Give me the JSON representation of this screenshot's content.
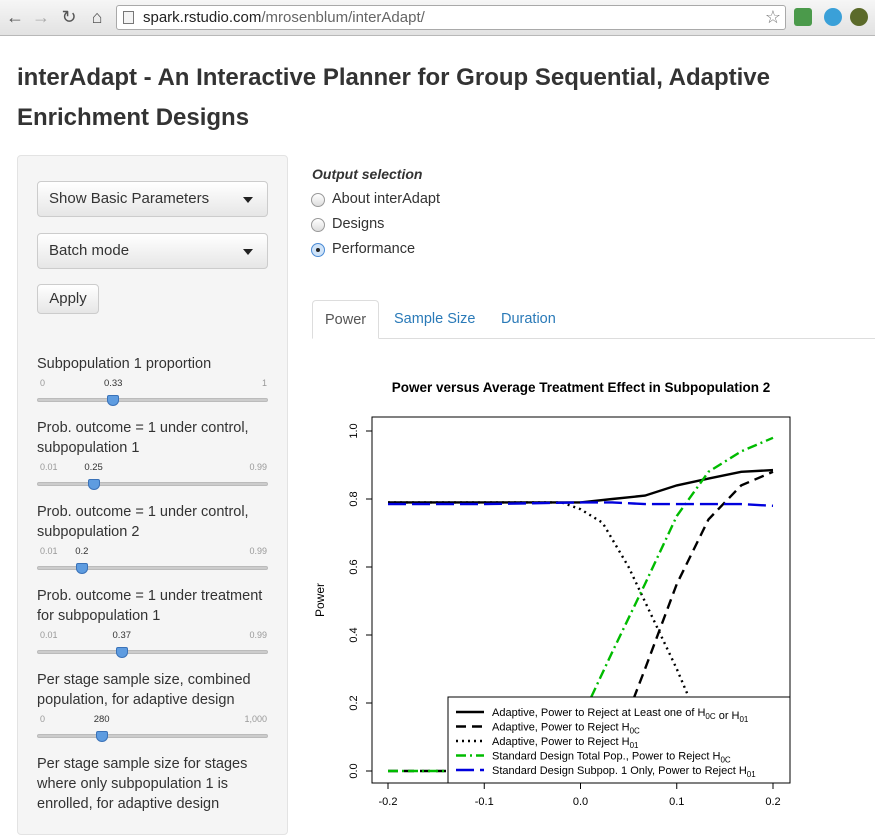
{
  "browser": {
    "url_host": "spark.rstudio.com",
    "url_path": "/mrosenblum/interAdapt/"
  },
  "page": {
    "title": "interAdapt - An Interactive Planner for Group Sequential, Adaptive Enrichment Designs"
  },
  "sidebar": {
    "param_dropdown": "Show Basic Parameters",
    "mode_dropdown": "Batch mode",
    "apply_label": "Apply",
    "sliders": [
      {
        "label": "Subpopulation 1 proportion",
        "min": "0",
        "max": "1",
        "value": "0.33",
        "fraction": 0.33
      },
      {
        "label": "Prob. outcome = 1 under control, subpopulation 1",
        "min": "0.01",
        "max": "0.99",
        "value": "0.25",
        "fraction": 0.245
      },
      {
        "label": "Prob. outcome = 1 under control, subpopulation 2",
        "min": "0.01",
        "max": "0.99",
        "value": "0.2",
        "fraction": 0.194
      },
      {
        "label": "Prob. outcome = 1 under treatment for subpopulation 1",
        "min": "0.01",
        "max": "0.99",
        "value": "0.37",
        "fraction": 0.367
      },
      {
        "label": "Per stage sample size, combined population, for adaptive design",
        "min": "0",
        "max": "1,000",
        "value": "280",
        "fraction": 0.28
      },
      {
        "label": "Per stage sample size for stages where only subpopulation 1 is enrolled, for adaptive design",
        "min": "",
        "max": "",
        "value": "",
        "fraction": null
      }
    ]
  },
  "output": {
    "heading": "Output selection",
    "options": [
      {
        "label": "About interAdapt",
        "selected": false
      },
      {
        "label": "Designs",
        "selected": false
      },
      {
        "label": "Performance",
        "selected": true
      }
    ],
    "tabs": [
      {
        "label": "Power",
        "active": true
      },
      {
        "label": "Sample Size",
        "active": false
      },
      {
        "label": "Duration",
        "active": false
      }
    ]
  },
  "chart_data": {
    "type": "line",
    "title": "Power versus Average Treatment Effect in Subpopulation 2",
    "ylabel": "Power",
    "xlabel": "",
    "xlim": [
      -0.2,
      0.2
    ],
    "ylim": [
      0.0,
      1.0
    ],
    "x_ticks": [
      "-0.2",
      "-0.1",
      "0.0",
      "0.1",
      "0.2"
    ],
    "y_ticks": [
      "0.0",
      "0.2",
      "0.4",
      "0.6",
      "0.8",
      "1.0"
    ],
    "legend_position": "bottom-right",
    "series": [
      {
        "name": "Adaptive, Power to Reject at Least one of H0C or H01",
        "color": "#000000",
        "dash": "solid",
        "x": [
          -0.2,
          -0.15,
          -0.1,
          -0.05,
          0.0,
          0.033,
          0.067,
          0.1,
          0.133,
          0.167,
          0.2
        ],
        "y": [
          0.79,
          0.79,
          0.79,
          0.79,
          0.79,
          0.8,
          0.81,
          0.84,
          0.86,
          0.88,
          0.885
        ]
      },
      {
        "name": "Adaptive, Power to Reject H0C",
        "color": "#000000",
        "dash": "dashed",
        "x": [
          -0.2,
          -0.1,
          0.0,
          0.033,
          0.067,
          0.1,
          0.133,
          0.167,
          0.2
        ],
        "y": [
          0.0,
          0.0,
          0.0,
          0.05,
          0.3,
          0.55,
          0.74,
          0.84,
          0.88
        ]
      },
      {
        "name": "Adaptive, Power to Reject H01",
        "color": "#000000",
        "dash": "dotted",
        "x": [
          -0.2,
          -0.1,
          -0.02,
          0.0,
          0.023,
          0.05,
          0.075,
          0.1,
          0.115
        ],
        "y": [
          0.79,
          0.79,
          0.79,
          0.77,
          0.73,
          0.6,
          0.45,
          0.3,
          0.2
        ]
      },
      {
        "name": "Standard Design Total Pop., Power to Reject H0C",
        "color": "#00bb00",
        "dash": "dashdot",
        "x": [
          -0.2,
          -0.15,
          -0.1,
          -0.05,
          0.0,
          0.033,
          0.067,
          0.1,
          0.133,
          0.167,
          0.2
        ],
        "y": [
          0.0,
          0.0,
          0.0,
          0.0,
          0.15,
          0.35,
          0.55,
          0.75,
          0.88,
          0.94,
          0.98
        ]
      },
      {
        "name": "Standard Design Subpop. 1 Only, Power to Reject H01",
        "color": "#0000dd",
        "dash": "longdash",
        "x": [
          -0.2,
          -0.1,
          0.0,
          0.033,
          0.067,
          0.1,
          0.133,
          0.167,
          0.2
        ],
        "y": [
          0.785,
          0.785,
          0.79,
          0.79,
          0.785,
          0.785,
          0.785,
          0.785,
          0.78
        ]
      }
    ],
    "legend_display": [
      {
        "text": "Adaptive, Power to Reject at Least one of H",
        "sub1": "0C",
        "mid": " or H",
        "sub2": "01"
      },
      {
        "text": "Adaptive, Power to Reject H",
        "sub1": "0C",
        "mid": "",
        "sub2": ""
      },
      {
        "text": "Adaptive, Power to Reject H",
        "sub1": "01",
        "mid": "",
        "sub2": ""
      },
      {
        "text": "Standard Design Total Pop., Power to Reject H",
        "sub1": "0C",
        "mid": "",
        "sub2": ""
      },
      {
        "text": "Standard Design Subpop. 1 Only, Power to Reject H",
        "sub1": "01",
        "mid": "",
        "sub2": ""
      }
    ]
  }
}
